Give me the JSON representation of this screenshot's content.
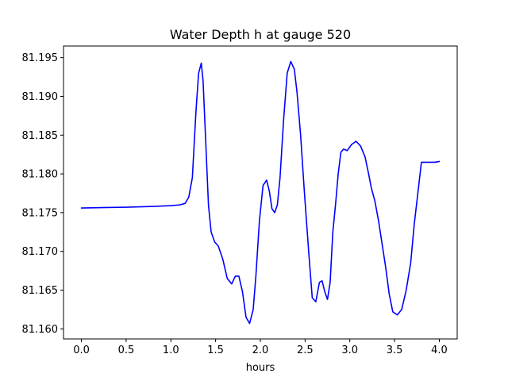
{
  "chart_data": {
    "type": "line",
    "title": "Water Depth h at gauge 520",
    "xlabel": "hours",
    "ylabel": "",
    "xlim": [
      -0.2,
      4.2
    ],
    "ylim": [
      81.1587,
      81.1965
    ],
    "grid": false,
    "legend": "none",
    "x_ticks": [
      0.0,
      0.5,
      1.0,
      1.5,
      2.0,
      2.5,
      3.0,
      3.5,
      4.0
    ],
    "x_tick_labels": [
      "0.0",
      "0.5",
      "1.0",
      "1.5",
      "2.0",
      "2.5",
      "3.0",
      "3.5",
      "4.0"
    ],
    "y_ticks": [
      81.16,
      81.165,
      81.17,
      81.175,
      81.18,
      81.185,
      81.19,
      81.195
    ],
    "y_tick_labels": [
      "81.160",
      "81.165",
      "81.170",
      "81.175",
      "81.180",
      "81.185",
      "81.190",
      "81.195"
    ],
    "series": [
      {
        "color": "#0000ff",
        "x": [
          0.0,
          0.5,
          0.8,
          1.0,
          1.1,
          1.16,
          1.2,
          1.24,
          1.28,
          1.31,
          1.34,
          1.36,
          1.39,
          1.42,
          1.45,
          1.49,
          1.53,
          1.58,
          1.63,
          1.68,
          1.72,
          1.76,
          1.8,
          1.84,
          1.88,
          1.92,
          1.95,
          1.99,
          2.03,
          2.07,
          2.1,
          2.13,
          2.16,
          2.19,
          2.22,
          2.26,
          2.3,
          2.34,
          2.38,
          2.41,
          2.45,
          2.49,
          2.54,
          2.58,
          2.62,
          2.66,
          2.69,
          2.72,
          2.75,
          2.78,
          2.81,
          2.84,
          2.87,
          2.9,
          2.93,
          2.97,
          3.02,
          3.07,
          3.12,
          3.17,
          3.21,
          3.24,
          3.28,
          3.32,
          3.36,
          3.4,
          3.44,
          3.48,
          3.53,
          3.58,
          3.63,
          3.68,
          3.72,
          3.76,
          3.8,
          3.85,
          3.9,
          3.95,
          4.0
        ],
        "y": [
          81.1756,
          81.1757,
          81.1758,
          81.1759,
          81.176,
          81.1762,
          81.177,
          81.1795,
          81.188,
          81.193,
          81.1943,
          81.192,
          81.184,
          81.176,
          81.1725,
          81.1712,
          81.1707,
          81.169,
          81.1665,
          81.1658,
          81.1668,
          81.1668,
          81.1648,
          81.1615,
          81.1607,
          81.1625,
          81.1668,
          81.174,
          81.1785,
          81.1792,
          81.1778,
          81.1755,
          81.175,
          81.176,
          81.1795,
          81.187,
          81.193,
          81.1945,
          81.1935,
          81.1905,
          81.185,
          81.178,
          81.17,
          81.164,
          81.1635,
          81.166,
          81.1662,
          81.1648,
          81.1638,
          81.166,
          81.1725,
          81.176,
          81.18,
          81.1828,
          81.1832,
          81.183,
          81.1838,
          81.1842,
          81.1836,
          81.1822,
          81.18,
          81.1782,
          81.1765,
          81.174,
          81.171,
          81.168,
          81.1645,
          81.1622,
          81.1618,
          81.1625,
          81.165,
          81.1685,
          81.1735,
          81.1775,
          81.1815,
          81.1815,
          81.1815,
          81.1815,
          81.1816
        ]
      }
    ]
  }
}
